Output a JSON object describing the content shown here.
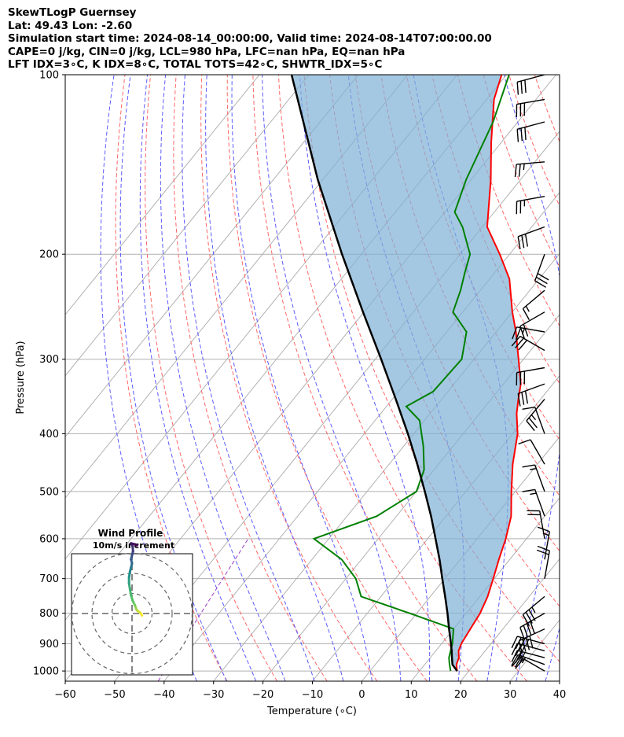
{
  "header": {
    "line1": "SkewTLogP Guernsey",
    "line2": "Lat: 49.43   Lon: -2.60",
    "line3": "Simulation start time: 2024-08-14_00:00:00, Valid time: 2024-08-14T07:00:00.00",
    "line4": "CAPE=0 j/kg, CIN=0 j/kg, LCL=980 hPa, LFC=nan hPa, EQ=nan hPa",
    "line5": "LFT IDX=3∘C, K IDX=8∘C, TOTAL TOTS=42∘C, SHWTR_IDX=5∘C"
  },
  "chart_data": {
    "type": "line",
    "title": "SkewTLogP Guernsey",
    "xlabel": "Temperature (∘C)",
    "ylabel": "Pressure (hPa)",
    "xlim": [
      -60,
      40
    ],
    "ylim": [
      1040,
      100
    ],
    "x_ticks": [
      -60,
      -50,
      -40,
      -30,
      -20,
      -10,
      0,
      10,
      20,
      30,
      40
    ],
    "x_tick_labels": [
      "−60",
      "−50",
      "−40",
      "−30",
      "−20",
      "−10",
      "0",
      "10",
      "20",
      "30",
      "40"
    ],
    "y_ticks": [
      1000,
      900,
      800,
      700,
      600,
      500,
      400,
      300,
      200,
      100
    ],
    "y_tick_labels": [
      "1000",
      "900",
      "800",
      "700",
      "600",
      "500",
      "400",
      "300",
      "200",
      "100"
    ],
    "series": [
      {
        "name": "Temperature",
        "color": "#ff0000",
        "pressure": [
          1000,
          975,
          950,
          925,
          900,
          850,
          800,
          750,
          700,
          650,
          600,
          550,
          500,
          450,
          400,
          370,
          350,
          330,
          300,
          270,
          250,
          220,
          200,
          180,
          150,
          130,
          110,
          100
        ],
        "values": [
          17.6,
          16.4,
          15.8,
          14.6,
          14.0,
          13.4,
          12.8,
          11.6,
          9.8,
          7.8,
          5.8,
          3.2,
          -0.8,
          -5.0,
          -9.0,
          -12.5,
          -14.5,
          -16.5,
          -21.0,
          -26.0,
          -30.0,
          -36.0,
          -42.0,
          -49.0,
          -56.0,
          -62.0,
          -68.5,
          -71.0
        ]
      },
      {
        "name": "Dewpoint",
        "color": "#008000",
        "pressure": [
          1000,
          975,
          950,
          925,
          900,
          850,
          800,
          750,
          700,
          650,
          600,
          550,
          500,
          460,
          420,
          380,
          360,
          340,
          300,
          270,
          250,
          230,
          215,
          200,
          180,
          170,
          150,
          120,
          100
        ],
        "values": [
          16.3,
          15.0,
          13.8,
          13.0,
          12.2,
          10.0,
          -1.5,
          -14.0,
          -18.0,
          -24.0,
          -33.0,
          -24.0,
          -20.0,
          -22.0,
          -26.0,
          -31.0,
          -36.0,
          -33.0,
          -32.5,
          -36.0,
          -42.0,
          -44.0,
          -46.0,
          -48.0,
          -54.0,
          -58.0,
          -61.0,
          -65.0,
          -69.5
        ]
      },
      {
        "name": "Parcel profile",
        "color": "#000000",
        "pressure": [
          1000,
          975,
          950,
          925,
          900,
          850,
          800,
          750,
          700,
          650,
          600,
          550,
          500,
          450,
          400,
          350,
          300,
          250,
          200,
          150,
          100
        ],
        "values": [
          17.6,
          15.6,
          14.4,
          13.2,
          11.9,
          9.1,
          6.2,
          3.0,
          -0.5,
          -4.2,
          -8.4,
          -13.0,
          -18.3,
          -24.3,
          -31.2,
          -39.3,
          -48.8,
          -60.2,
          -73.9,
          -91.0,
          -113.5
        ]
      }
    ],
    "filled_region": {
      "between": [
        "Temperature",
        "Parcel profile"
      ],
      "color": "#7fb0d6",
      "alpha": 0.7
    },
    "reference_lines": {
      "isotherms": {
        "color": "#aaaaaa",
        "style": "solid",
        "values": [
          -120,
          -110,
          -100,
          -90,
          -80,
          -70,
          -60,
          -50,
          -40,
          -30,
          -20,
          -10,
          0,
          10,
          20,
          30,
          40
        ]
      },
      "dry_adiabats": {
        "color": "#ff6666",
        "style": "dashed",
        "theta_c": [
          -30,
          -20,
          -10,
          0,
          10,
          20,
          30,
          40,
          50,
          60,
          70,
          80,
          90,
          100,
          110,
          120,
          130
        ]
      },
      "moist_adiabats": {
        "color": "#5a5aff",
        "style": "dashed",
        "start_temps_at_1000": [
          -36,
          -30,
          -24,
          -18,
          -12,
          -6,
          0,
          6,
          12,
          18,
          24,
          30,
          36
        ]
      },
      "mixing_ratio": {
        "color": "#9b3fc9",
        "style": "dashed",
        "values_gkg": [
          0.1
        ]
      }
    },
    "wind_barbs": {
      "units": "m/s",
      "pressure": [
        1000,
        975,
        950,
        925,
        900,
        850,
        800,
        750,
        700,
        650,
        600,
        550,
        500,
        450,
        400,
        350,
        330,
        310,
        290,
        270,
        250,
        230,
        200,
        180,
        160,
        140,
        120,
        110,
        100
      ],
      "speed": [
        9,
        12,
        14,
        16,
        18,
        20,
        19,
        17,
        11,
        8,
        9,
        8,
        7,
        6,
        6,
        12,
        15,
        15,
        14,
        13,
        10,
        8,
        15,
        14,
        12,
        13,
        15,
        14,
        16
      ],
      "direction": [
        300,
        290,
        285,
        285,
        285,
        245,
        240,
        230,
        10,
        10,
        350,
        340,
        340,
        330,
        340,
        220,
        250,
        260,
        300,
        280,
        240,
        230,
        200,
        250,
        260,
        265,
        255,
        260,
        255
      ]
    },
    "inset": {
      "title": "Wind Profile",
      "subtitle": "10m/s increment",
      "ring_spacing_ms": 10,
      "colormap": [
        "#440154",
        "#3b528b",
        "#21918c",
        "#5ec962",
        "#fde725"
      ],
      "u": [
        5.0,
        4.0,
        2.5,
        2.0,
        1.5,
        0.5,
        -0.5,
        -1.0,
        -1.5,
        -1.5,
        -1.0,
        -0.5,
        0.0,
        -0.5,
        0.0,
        0.5,
        0.3,
        -0.5,
        1.5,
        2.5
      ],
      "v": [
        -1.0,
        0.5,
        1.5,
        2.5,
        4.0,
        6.0,
        9.0,
        12.0,
        15.0,
        18.0,
        21.0,
        23.0,
        25.0,
        27.0,
        29.0,
        31.0,
        33.5,
        35.0,
        34.5,
        34.0
      ]
    }
  }
}
